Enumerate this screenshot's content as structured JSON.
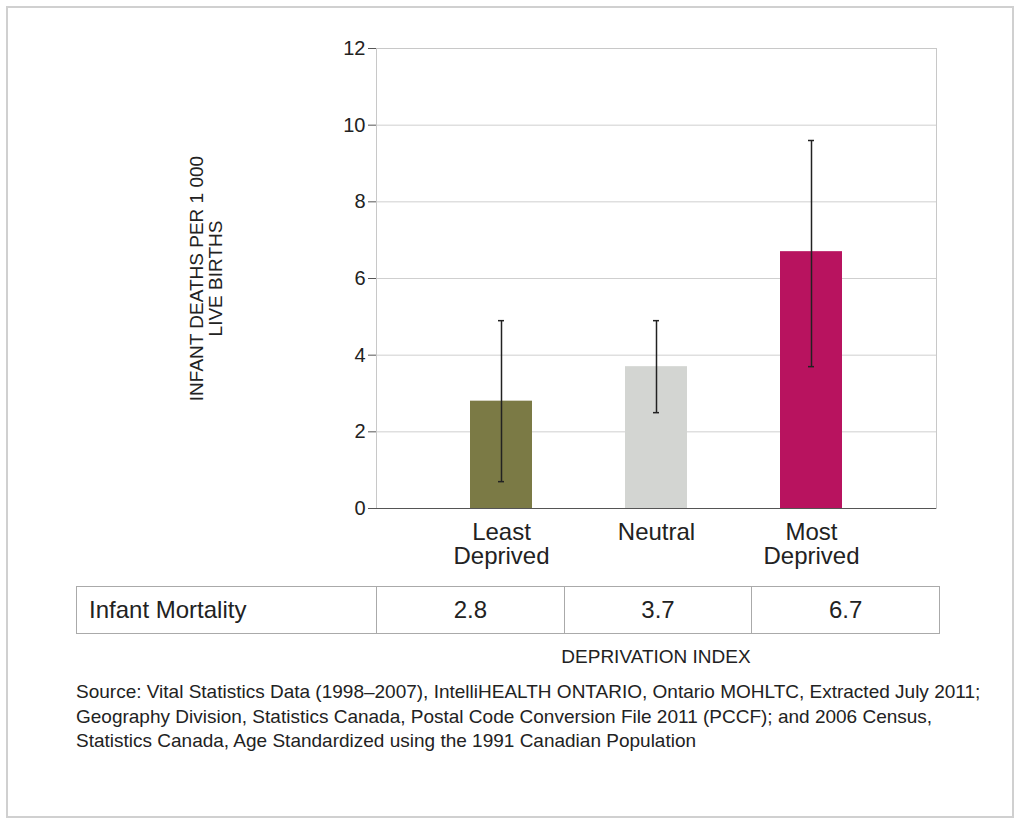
{
  "chart_data": {
    "type": "bar",
    "categories": [
      "Least Deprived",
      "Neutral",
      "Most Deprived"
    ],
    "values": [
      2.8,
      3.7,
      6.7
    ],
    "colors": [
      "#7b7a45",
      "#d3d5d2",
      "#b8135f"
    ],
    "error_low": [
      0.7,
      2.5,
      3.7
    ],
    "error_high": [
      4.9,
      4.9,
      9.6
    ],
    "ylim": [
      0,
      12
    ],
    "yticks": [
      0,
      2,
      4,
      6,
      8,
      10,
      12
    ],
    "grid": true,
    "y_label": "INFANT DEATHS PER 1 000 LIVE BIRTHS",
    "x_label": "DEPRIVATION INDEX",
    "table_label": "Infant Mortality",
    "source": "Source: Vital Statistics Data (1998–2007), IntelliHEALTH ONTARIO, Ontario MOHLTC, Extracted July 2011; Geography Division, Statistics Canada, Postal Code Conversion File 2011 (PCCF); and 2006 Census, Statistics Canada, Age Standardized using the 1991 Canadian Population"
  }
}
